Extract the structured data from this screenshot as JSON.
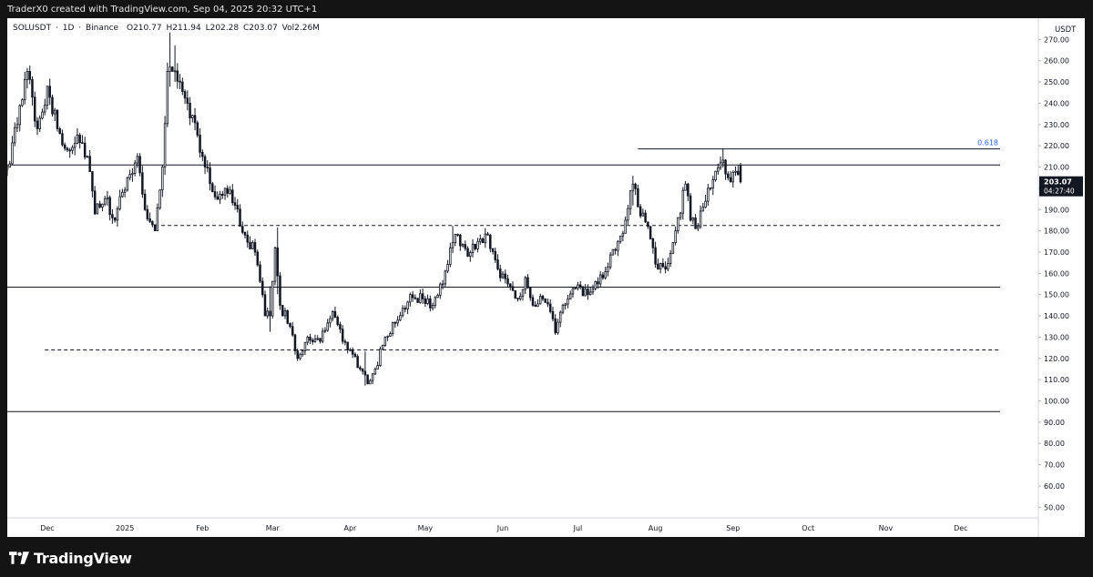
{
  "header": {
    "credit": "TraderX0 created with TradingView.com, Sep 04, 2025 20:32 UTC+1"
  },
  "legend": {
    "symbol": "SOLUSDT",
    "sep1": "·",
    "interval": "1D",
    "sep2": "·",
    "exchange": "Binance",
    "open_label": "O",
    "open": "210.77",
    "high_label": "H",
    "high": "211.94",
    "low_label": "L",
    "low": "202.28",
    "close_label": "C",
    "close": "203.07",
    "vol_label": "Vol",
    "vol": "2.26M"
  },
  "footer": {
    "brand": "TradingView"
  },
  "colors": {
    "candle": "#131722",
    "background": "#ffffff",
    "frame": "#141414",
    "fib_text": "#2962ff",
    "price_tag_bg": "#131722"
  },
  "chart_data": {
    "type": "candlestick",
    "currency": "USDT",
    "ylim": [
      45,
      280
    ],
    "y_ticks": [
      50,
      60,
      70,
      80,
      90,
      100,
      110,
      120,
      130,
      140,
      150,
      160,
      170,
      180,
      190,
      200,
      210,
      220,
      230,
      240,
      250,
      260,
      270
    ],
    "y_tick_labels": [
      "50.00",
      "60.00",
      "70.00",
      "80.00",
      "90.00",
      "100.00",
      "110.00",
      "120.00",
      "130.00",
      "140.00",
      "150.00",
      "160.00",
      "170.00",
      "180.00",
      "190.00",
      "200.00",
      "210.00",
      "220.00",
      "230.00",
      "240.00",
      "250.00",
      "260.00",
      "270.00"
    ],
    "x_start": "2024-11-15",
    "x_end": "2026-01-01",
    "x_ticks": [
      {
        "date": "2024-12-01",
        "label": "Dec"
      },
      {
        "date": "2025-01-01",
        "label": "2025"
      },
      {
        "date": "2025-02-01",
        "label": "Feb"
      },
      {
        "date": "2025-03-01",
        "label": "Mar"
      },
      {
        "date": "2025-04-01",
        "label": "Apr"
      },
      {
        "date": "2025-05-01",
        "label": "May"
      },
      {
        "date": "2025-06-01",
        "label": "Jun"
      },
      {
        "date": "2025-07-01",
        "label": "Jul"
      },
      {
        "date": "2025-08-01",
        "label": "Aug"
      },
      {
        "date": "2025-09-01",
        "label": "Sep"
      },
      {
        "date": "2025-10-01",
        "label": "Oct"
      },
      {
        "date": "2025-11-01",
        "label": "Nov"
      },
      {
        "date": "2025-12-01",
        "label": "Dec"
      }
    ],
    "price_anchors": [
      [
        "2024-11-15",
        210
      ],
      [
        "2024-11-19",
        230
      ],
      [
        "2024-11-23",
        255
      ],
      [
        "2024-11-27",
        228
      ],
      [
        "2024-12-01",
        248
      ],
      [
        "2024-12-05",
        228
      ],
      [
        "2024-12-09",
        218
      ],
      [
        "2024-12-13",
        225
      ],
      [
        "2024-12-17",
        215
      ],
      [
        "2024-12-20",
        188
      ],
      [
        "2024-12-24",
        195
      ],
      [
        "2024-12-28",
        185
      ],
      [
        "2025-01-02",
        205
      ],
      [
        "2025-01-06",
        215
      ],
      [
        "2025-01-09",
        190
      ],
      [
        "2025-01-13",
        180
      ],
      [
        "2025-01-16",
        210
      ],
      [
        "2025-01-18",
        255
      ],
      [
        "2025-01-20",
        255
      ],
      [
        "2025-01-23",
        250
      ],
      [
        "2025-01-26",
        240
      ],
      [
        "2025-01-30",
        225
      ],
      [
        "2025-02-02",
        210
      ],
      [
        "2025-02-06",
        196
      ],
      [
        "2025-02-10",
        200
      ],
      [
        "2025-02-14",
        192
      ],
      [
        "2025-02-18",
        178
      ],
      [
        "2025-02-22",
        170
      ],
      [
        "2025-02-26",
        140
      ],
      [
        "2025-02-28",
        140
      ],
      [
        "2025-03-02",
        172
      ],
      [
        "2025-03-04",
        145
      ],
      [
        "2025-03-08",
        135
      ],
      [
        "2025-03-11",
        120
      ],
      [
        "2025-03-15",
        130
      ],
      [
        "2025-03-20",
        128
      ],
      [
        "2025-03-25",
        142
      ],
      [
        "2025-03-29",
        128
      ],
      [
        "2025-04-02",
        122
      ],
      [
        "2025-04-05",
        115
      ],
      [
        "2025-04-08",
        108
      ],
      [
        "2025-04-11",
        115
      ],
      [
        "2025-04-15",
        130
      ],
      [
        "2025-04-20",
        138
      ],
      [
        "2025-04-25",
        150
      ],
      [
        "2025-04-30",
        148
      ],
      [
        "2025-05-04",
        145
      ],
      [
        "2025-05-08",
        155
      ],
      [
        "2025-05-11",
        172
      ],
      [
        "2025-05-14",
        178
      ],
      [
        "2025-05-18",
        168
      ],
      [
        "2025-05-22",
        175
      ],
      [
        "2025-05-26",
        178
      ],
      [
        "2025-05-30",
        162
      ],
      [
        "2025-06-03",
        155
      ],
      [
        "2025-06-07",
        148
      ],
      [
        "2025-06-10",
        158
      ],
      [
        "2025-06-13",
        145
      ],
      [
        "2025-06-17",
        148
      ],
      [
        "2025-06-20",
        142
      ],
      [
        "2025-06-22",
        132
      ],
      [
        "2025-06-25",
        145
      ],
      [
        "2025-06-30",
        153
      ],
      [
        "2025-07-05",
        150
      ],
      [
        "2025-07-09",
        155
      ],
      [
        "2025-07-13",
        163
      ],
      [
        "2025-07-17",
        175
      ],
      [
        "2025-07-20",
        185
      ],
      [
        "2025-07-23",
        202
      ],
      [
        "2025-07-26",
        187
      ],
      [
        "2025-07-29",
        182
      ],
      [
        "2025-08-02",
        162
      ],
      [
        "2025-08-05",
        162
      ],
      [
        "2025-08-09",
        180
      ],
      [
        "2025-08-13",
        202
      ],
      [
        "2025-08-15",
        185
      ],
      [
        "2025-08-18",
        182
      ],
      [
        "2025-08-22",
        200
      ],
      [
        "2025-08-25",
        208
      ],
      [
        "2025-08-27",
        212
      ],
      [
        "2025-08-30",
        205
      ],
      [
        "2025-09-02",
        208
      ],
      [
        "2025-09-04",
        203.07
      ]
    ],
    "volatility_spikes": [
      [
        "2025-01-19",
        12
      ],
      [
        "2025-01-21",
        10
      ],
      [
        "2025-02-28",
        15
      ],
      [
        "2025-03-03",
        10
      ],
      [
        "2025-04-07",
        8
      ],
      [
        "2025-05-12",
        6
      ],
      [
        "2025-07-23",
        4
      ],
      [
        "2025-08-28",
        5
      ]
    ],
    "horizontal_lines": [
      {
        "price": 211,
        "style": "solid",
        "from": "2024-11-15",
        "to": "2025-12-31"
      },
      {
        "price": 218.5,
        "style": "solid",
        "from": "2025-07-25",
        "to": "2025-12-31",
        "label": "0.618"
      },
      {
        "price": 182.5,
        "style": "dashed",
        "from": "2025-01-13",
        "to": "2025-12-31"
      },
      {
        "price": 153.5,
        "style": "solid",
        "from": "2024-11-15",
        "to": "2025-12-31"
      },
      {
        "price": 124,
        "style": "dashed",
        "from": "2024-11-30",
        "to": "2025-12-31"
      },
      {
        "price": 95,
        "style": "solid",
        "from": "2024-11-15",
        "to": "2025-12-31"
      }
    ],
    "last_price": {
      "value": 203.07,
      "label": "203.07",
      "countdown": "04:27:40"
    }
  }
}
